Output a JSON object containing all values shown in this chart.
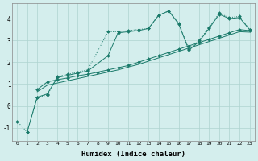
{
  "background_color": "#d4eeed",
  "grid_color": "#aed4d0",
  "line_color": "#1a7a6a",
  "xlabel": "Humidex (Indice chaleur)",
  "xlim": [
    -0.5,
    23.5
  ],
  "ylim": [
    -1.6,
    4.7
  ],
  "yticks": [
    -1,
    0,
    1,
    2,
    3,
    4
  ],
  "xticks": [
    0,
    1,
    2,
    3,
    4,
    5,
    6,
    7,
    8,
    9,
    10,
    11,
    12,
    13,
    14,
    15,
    16,
    17,
    18,
    19,
    20,
    21,
    22,
    23
  ],
  "series": [
    {
      "x": [
        0,
        1,
        2,
        3,
        4,
        5,
        6,
        7,
        9,
        10,
        11,
        12,
        13,
        14,
        15,
        16,
        17,
        18,
        19,
        20,
        21,
        22,
        23
      ],
      "y": [
        -0.7,
        -1.2,
        0.4,
        0.5,
        1.35,
        1.45,
        1.55,
        1.65,
        3.4,
        3.4,
        3.45,
        3.5,
        3.55,
        4.15,
        4.35,
        3.8,
        2.6,
        3.0,
        3.6,
        4.25,
        4.05,
        4.1,
        3.5
      ],
      "linestyle": "dotted",
      "marker": "D",
      "markersize": 2.0
    },
    {
      "x": [
        1,
        2,
        3,
        4,
        5,
        6,
        7,
        9,
        10,
        11,
        12,
        13,
        14,
        15,
        16,
        17,
        18,
        19,
        20,
        21,
        22,
        23
      ],
      "y": [
        -1.2,
        0.4,
        0.55,
        1.3,
        1.4,
        1.5,
        1.6,
        2.3,
        3.35,
        3.4,
        3.45,
        3.55,
        4.15,
        4.35,
        3.75,
        2.55,
        2.95,
        3.55,
        4.2,
        4.0,
        4.05,
        3.5
      ],
      "linestyle": "solid",
      "marker": "D",
      "markersize": 2.0
    },
    {
      "x": [
        2,
        3,
        4,
        5,
        6,
        7,
        8,
        9,
        10,
        11,
        12,
        13,
        14,
        15,
        16,
        17,
        18,
        19,
        20,
        21,
        22,
        23
      ],
      "y": [
        0.75,
        1.1,
        1.2,
        1.28,
        1.38,
        1.45,
        1.55,
        1.65,
        1.75,
        1.85,
        2.0,
        2.15,
        2.3,
        2.45,
        2.6,
        2.75,
        2.9,
        3.05,
        3.2,
        3.35,
        3.5,
        3.45
      ],
      "linestyle": "solid",
      "marker": "D",
      "markersize": 2.0
    },
    {
      "x": [
        2,
        3,
        4,
        5,
        6,
        7,
        8,
        9,
        10,
        11,
        12,
        13,
        14,
        15,
        16,
        17,
        18,
        19,
        20,
        21,
        22,
        23
      ],
      "y": [
        0.65,
        0.95,
        1.05,
        1.15,
        1.25,
        1.35,
        1.45,
        1.55,
        1.65,
        1.78,
        1.9,
        2.05,
        2.2,
        2.35,
        2.5,
        2.65,
        2.8,
        2.95,
        3.1,
        3.25,
        3.4,
        3.38
      ],
      "linestyle": "solid",
      "marker": null,
      "markersize": 0
    }
  ]
}
